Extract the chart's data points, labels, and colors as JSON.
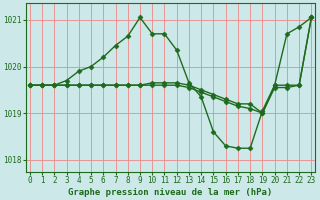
{
  "title": "Graphe pression niveau de la mer (hPa)",
  "bg_color": "#cce8e8",
  "line_color": "#1e6b1e",
  "grid_color": "#ee8888",
  "ylim": [
    1017.75,
    1021.35
  ],
  "xlim": [
    -0.3,
    23.3
  ],
  "yticks": [
    1018,
    1019,
    1020,
    1021
  ],
  "xticks": [
    0,
    1,
    2,
    3,
    4,
    5,
    6,
    7,
    8,
    9,
    10,
    11,
    12,
    13,
    14,
    15,
    16,
    17,
    18,
    19,
    20,
    21,
    22,
    23
  ],
  "series": [
    {
      "x": [
        0,
        1,
        2,
        3,
        4,
        5,
        6,
        7,
        8,
        9,
        10,
        11,
        12,
        13,
        14,
        15,
        16,
        17,
        18,
        19,
        20,
        21,
        22,
        23
      ],
      "y": [
        1019.6,
        1019.6,
        1019.6,
        1019.7,
        1019.9,
        1020.0,
        1020.2,
        1020.45,
        1020.65,
        1021.05,
        1020.7,
        1020.7,
        1020.35,
        1019.65,
        1019.35,
        1018.6,
        1018.3,
        1018.25,
        1018.25,
        1019.05,
        1019.6,
        1020.7,
        1020.85,
        1021.05
      ]
    },
    {
      "x": [
        0,
        1,
        2,
        3,
        4,
        5,
        6,
        7,
        8,
        9,
        10,
        11,
        12,
        13,
        14,
        15,
        16,
        17,
        18,
        19,
        20,
        21,
        22,
        23
      ],
      "y": [
        1019.6,
        1019.6,
        1019.6,
        1019.6,
        1019.6,
        1019.6,
        1019.6,
        1019.6,
        1019.6,
        1019.6,
        1019.65,
        1019.65,
        1019.65,
        1019.6,
        1019.5,
        1019.4,
        1019.3,
        1019.2,
        1019.2,
        1019.0,
        1019.6,
        1019.6,
        1019.6,
        1021.05
      ]
    },
    {
      "x": [
        0,
        1,
        2,
        3,
        4,
        5,
        6,
        7,
        8,
        9,
        10,
        11,
        12,
        13,
        14,
        15,
        16,
        17,
        18,
        19,
        20,
        21,
        22,
        23
      ],
      "y": [
        1019.6,
        1019.6,
        1019.6,
        1019.6,
        1019.6,
        1019.6,
        1019.6,
        1019.6,
        1019.6,
        1019.6,
        1019.6,
        1019.6,
        1019.6,
        1019.55,
        1019.45,
        1019.35,
        1019.25,
        1019.15,
        1019.1,
        1019.0,
        1019.55,
        1019.55,
        1019.6,
        1021.05
      ]
    }
  ],
  "marker": "D",
  "marker_size": 2.5,
  "line_width": 1.0,
  "tick_fontsize": 5.5,
  "label_fontsize": 6.5,
  "font_family": "monospace"
}
